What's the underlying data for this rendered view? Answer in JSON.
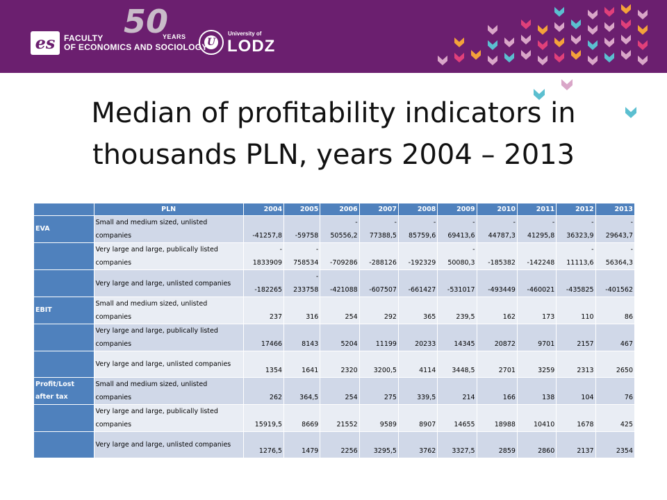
{
  "header": {
    "logo_mark": "es",
    "faculty_line1": "FACULTY",
    "faculty_line2": "OF ECONOMICS AND SOCIOLOGY",
    "anniversary_number": "50",
    "anniversary_word": "YEARS",
    "seal_mark": "U",
    "university_small": "University of",
    "university_name": "LODZ",
    "colors": {
      "banner": "#6b1f6f",
      "chevron_pink": "#d9a6c8",
      "chevron_orange": "#f4a23a",
      "chevron_red": "#e0407a",
      "chevron_teal": "#5bbfd0"
    }
  },
  "title": {
    "line1": "Median of profitability indicators in",
    "line2": "thousands PLN, years 2004 – 2013"
  },
  "table": {
    "header": [
      "",
      "PLN",
      "2004",
      "2005",
      "2006",
      "2007",
      "2008",
      "2009",
      "2010",
      "2011",
      "2012",
      "2013"
    ],
    "rows": [
      {
        "group": "EVA",
        "label": "Small and medium sized, unlisted companies",
        "values": [
          "-41257,8",
          "-59758",
          "-\n50556,2",
          "-\n77388,5",
          "-\n85759,6",
          "-\n69413,6",
          "-\n44787,3",
          "-\n41295,8",
          "-\n36323,9",
          "-\n29643,7"
        ]
      },
      {
        "group": "",
        "label": "Very large and large, publically listed companies",
        "values": [
          "-\n1833909",
          "-\n758534",
          "-709286",
          "-288126",
          "-192329",
          "-\n50080,3",
          "-185382",
          "-142248",
          "-\n11113,6",
          "-\n56364,3"
        ]
      },
      {
        "group": "",
        "label": "Very large and large, unlisted companies",
        "values": [
          "-182265",
          "-\n233758",
          "-421088",
          "-607507",
          "-661427",
          "-531017",
          "-493449",
          "-460021",
          "-435825",
          "-401562"
        ]
      },
      {
        "group": "EBIT",
        "label": "Small and medium sized, unlisted companies",
        "values": [
          "237",
          "316",
          "254",
          "292",
          "365",
          "239,5",
          "162",
          "173",
          "110",
          "86"
        ]
      },
      {
        "group": "",
        "label": "Very large and large, publically listed companies",
        "values": [
          "17466",
          "8143",
          "5204",
          "11199",
          "20233",
          "14345",
          "20872",
          "9701",
          "2157",
          "467"
        ]
      },
      {
        "group": "",
        "label": "Very large and large, unlisted companies",
        "values": [
          "1354",
          "1641",
          "2320",
          "3200,5",
          "4114",
          "3448,5",
          "2701",
          "3259",
          "2313",
          "2650"
        ]
      },
      {
        "group": "Profit/Lost after tax",
        "label": "Small and medium sized, unlisted companies",
        "values": [
          "262",
          "364,5",
          "254",
          "275",
          "339,5",
          "214",
          "166",
          "138",
          "104",
          "76"
        ]
      },
      {
        "group": "",
        "label": "Very large and large, publically listed companies",
        "values": [
          "15919,5",
          "8669",
          "21552",
          "9589",
          "8907",
          "14655",
          "18988",
          "10410",
          "1678",
          "425"
        ]
      },
      {
        "group": "",
        "label": "Very large and large, unlisted companies",
        "values": [
          "1276,5",
          "1479",
          "2256",
          "3295,5",
          "3762",
          "3327,5",
          "2859",
          "2860",
          "2137",
          "2354"
        ]
      }
    ],
    "colors": {
      "header": "#4f81bd",
      "row_odd": "#d0d8e8",
      "row_even": "#e9edf4"
    }
  }
}
